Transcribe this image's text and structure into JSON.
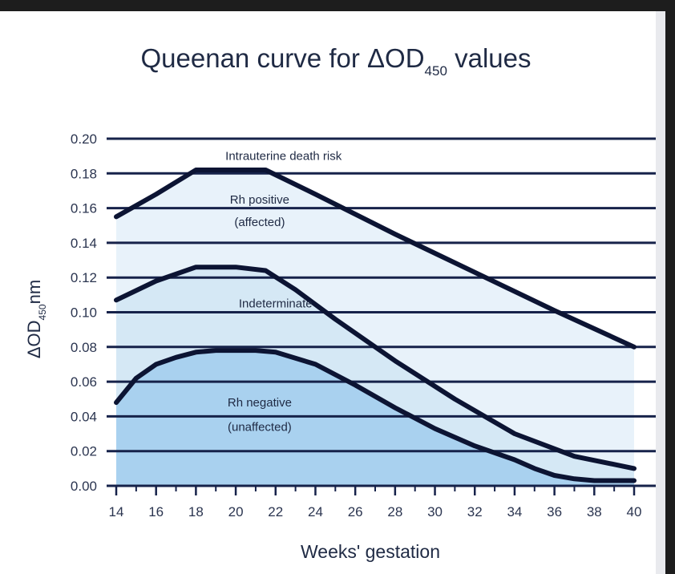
{
  "chart_data": {
    "type": "area",
    "title": "Queenan curve for ΔOD",
    "title_sub": "450",
    "title_suffix": " values",
    "ylabel": "ΔOD",
    "ylabel_sub": "450",
    "ylabel_suffix": "nm",
    "xlabel": "Weeks' gestation",
    "xlim": [
      14,
      40
    ],
    "ylim": [
      0,
      0.2
    ],
    "grid": true,
    "x_ticks": [
      14,
      16,
      18,
      20,
      22,
      24,
      26,
      28,
      30,
      32,
      34,
      36,
      38,
      40
    ],
    "y_ticks": [
      "0.00",
      "0.02",
      "0.04",
      "0.06",
      "0.08",
      "0.10",
      "0.12",
      "0.14",
      "0.16",
      "0.18",
      "0.20"
    ],
    "y_tick_values": [
      0,
      0.02,
      0.04,
      0.06,
      0.08,
      0.1,
      0.12,
      0.14,
      0.16,
      0.18,
      0.2
    ],
    "series": [
      {
        "x": [
          14,
          16,
          18,
          21.5,
          24,
          28,
          32,
          36,
          40
        ],
        "y": [
          0.155,
          0.168,
          0.182,
          0.182,
          0.168,
          0.145,
          0.123,
          0.101,
          0.08
        ]
      },
      {
        "x": [
          14,
          16,
          18,
          20,
          21.5,
          23,
          25,
          28,
          31,
          34,
          37,
          40
        ],
        "y": [
          0.107,
          0.118,
          0.126,
          0.126,
          0.124,
          0.113,
          0.096,
          0.072,
          0.05,
          0.03,
          0.017,
          0.01
        ]
      },
      {
        "x": [
          14,
          15,
          16,
          17,
          18,
          19,
          20,
          21,
          22,
          24,
          26,
          28,
          30,
          32,
          34,
          35,
          36,
          37,
          38,
          40
        ],
        "y": [
          0.048,
          0.062,
          0.07,
          0.074,
          0.077,
          0.078,
          0.078,
          0.078,
          0.077,
          0.07,
          0.058,
          0.045,
          0.033,
          0.023,
          0.015,
          0.01,
          0.006,
          0.004,
          0.003,
          0.003
        ]
      }
    ],
    "zone_labels": [
      {
        "text": "Intrauterine death risk",
        "x": 22.4,
        "y": 0.19
      },
      {
        "text": "Rh positive",
        "x": 21.2,
        "y": 0.165
      },
      {
        "text": "(affected)",
        "x": 21.2,
        "y": 0.152
      },
      {
        "text": "Indeterminate",
        "x": 22.0,
        "y": 0.105
      },
      {
        "text": "Rh negative",
        "x": 21.2,
        "y": 0.048
      },
      {
        "text": "(unaffected)",
        "x": 21.2,
        "y": 0.034
      }
    ],
    "zone_colors": [
      "#e8f2fa",
      "#d5e8f5",
      "#a9d1ef"
    ]
  }
}
